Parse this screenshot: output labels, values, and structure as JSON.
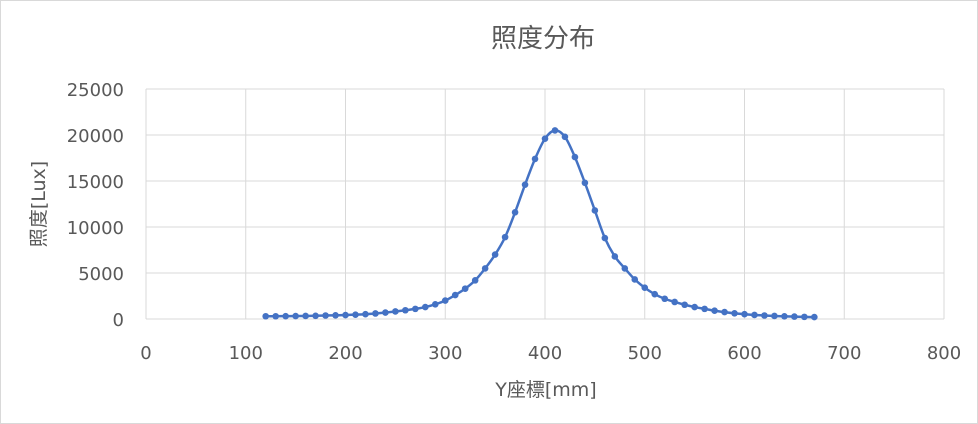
{
  "chart_data": {
    "type": "scatter",
    "title": "照度分布",
    "xlabel": "Y座標[mm]",
    "ylabel": "照度[Lux]",
    "xlim": [
      0,
      800
    ],
    "ylim": [
      0,
      25000
    ],
    "x_ticks": [
      "0",
      "100",
      "200",
      "300",
      "400",
      "500",
      "600",
      "700",
      "800"
    ],
    "y_ticks": [
      "0",
      "5000",
      "10000",
      "15000",
      "20000",
      "25000"
    ],
    "grid": true,
    "legend": "none",
    "series_color": "#4472c4",
    "grid_color": "#d9d9d9",
    "series": [
      {
        "points": [
          [
            120,
            300
          ],
          [
            130,
            300
          ],
          [
            140,
            310
          ],
          [
            150,
            320
          ],
          [
            160,
            330
          ],
          [
            170,
            350
          ],
          [
            180,
            380
          ],
          [
            190,
            400
          ],
          [
            200,
            430
          ],
          [
            210,
            470
          ],
          [
            220,
            520
          ],
          [
            230,
            600
          ],
          [
            240,
            700
          ],
          [
            250,
            820
          ],
          [
            260,
            950
          ],
          [
            270,
            1100
          ],
          [
            280,
            1300
          ],
          [
            290,
            1600
          ],
          [
            300,
            2000
          ],
          [
            310,
            2600
          ],
          [
            320,
            3300
          ],
          [
            330,
            4200
          ],
          [
            340,
            5500
          ],
          [
            350,
            7000
          ],
          [
            360,
            8900
          ],
          [
            370,
            11600
          ],
          [
            380,
            14600
          ],
          [
            390,
            17400
          ],
          [
            400,
            19600
          ],
          [
            410,
            20500
          ],
          [
            420,
            19800
          ],
          [
            430,
            17600
          ],
          [
            440,
            14800
          ],
          [
            450,
            11800
          ],
          [
            460,
            8800
          ],
          [
            470,
            6800
          ],
          [
            480,
            5500
          ],
          [
            490,
            4300
          ],
          [
            500,
            3400
          ],
          [
            510,
            2700
          ],
          [
            520,
            2200
          ],
          [
            530,
            1850
          ],
          [
            540,
            1550
          ],
          [
            550,
            1300
          ],
          [
            560,
            1100
          ],
          [
            570,
            900
          ],
          [
            580,
            750
          ],
          [
            590,
            620
          ],
          [
            600,
            520
          ],
          [
            610,
            440
          ],
          [
            620,
            380
          ],
          [
            630,
            330
          ],
          [
            640,
            290
          ],
          [
            650,
            260
          ],
          [
            660,
            230
          ],
          [
            670,
            210
          ]
        ]
      }
    ]
  }
}
